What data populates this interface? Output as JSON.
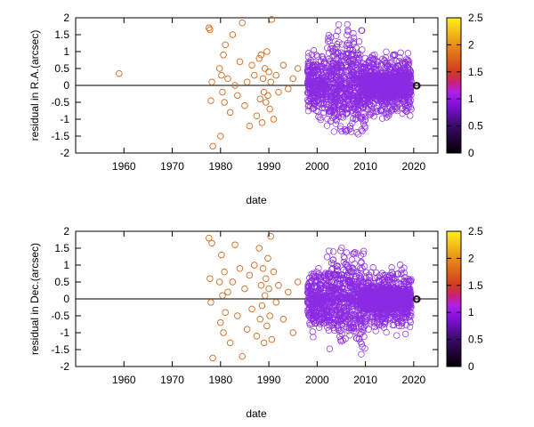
{
  "chart_data": [
    {
      "type": "scatter",
      "xlabel": "date",
      "ylabel": "residual in R.A.(arcsec)",
      "xlim": [
        1950,
        2025
      ],
      "ylim": [
        -2,
        2
      ],
      "x_ticks": [
        "1960",
        "1970",
        "1980",
        "1990",
        "2000",
        "2010",
        "2020"
      ],
      "x_tick_values": [
        1960,
        1970,
        1980,
        1990,
        2000,
        2010,
        2020
      ],
      "y_ticks": [
        "-2",
        "-1.5",
        "-1",
        "-0.5",
        "0",
        "0.5",
        "1",
        "1.5",
        "2"
      ],
      "y_tick_values": [
        -2,
        -1.5,
        -1,
        -0.5,
        0,
        0.5,
        1,
        1.5,
        2
      ],
      "zero_line": 0,
      "marker": "open-circle",
      "colorbar": {
        "range": [
          0,
          2.5
        ],
        "ticks": [
          "0",
          "0.5",
          "1",
          "1.5",
          "2",
          "2.5"
        ],
        "tick_values": [
          0,
          0.5,
          1,
          1.5,
          2,
          2.5
        ],
        "palette": "gnuplot"
      },
      "series": [
        {
          "color_value": 1.45,
          "color": "#d2691e",
          "x": [
            1959.0,
            1977.6,
            1977.8,
            1978.0,
            1978.2,
            1978.4,
            1979.8,
            1980.0,
            1980.2,
            1980.4,
            1980.6,
            1980.8,
            1981.0,
            1981.5,
            1982.0,
            1982.5,
            1983.0,
            1983.5,
            1984.0,
            1984.5,
            1985.0,
            1985.5,
            1986.0,
            1986.5,
            1987.0,
            1987.5,
            1988.0,
            1988.2,
            1988.4,
            1988.6,
            1988.8,
            1989.0,
            1989.2,
            1989.4,
            1989.6,
            1989.8,
            1990.0,
            1990.2,
            1990.4,
            1990.6,
            1991.0,
            1991.5,
            1992.0,
            1993.0,
            1994.0,
            1995.0,
            1996.0
          ],
          "y": [
            0.35,
            1.7,
            1.65,
            -0.45,
            0.1,
            -1.8,
            0.5,
            -1.5,
            0.3,
            -0.2,
            0.9,
            -0.5,
            1.2,
            0.2,
            -0.8,
            1.5,
            0.0,
            -0.3,
            0.7,
            1.85,
            -0.6,
            0.1,
            -1.2,
            0.6,
            0.3,
            -0.9,
            0.8,
            -0.4,
            0.9,
            -1.1,
            0.2,
            -0.2,
            0.5,
            -0.5,
            1.0,
            -0.3,
            0.4,
            -0.7,
            0.1,
            1.95,
            -1.0,
            0.3,
            -0.2,
            0.6,
            -0.1,
            0.2,
            0.5
          ]
        },
        {
          "color_value": 1.1,
          "color": "#8b2be2",
          "x_range": [
            1998,
            2019.5
          ],
          "y_spread": [
            -2,
            2
          ],
          "points_shown": "dense"
        },
        {
          "color_value": 0.1,
          "color": "#301030",
          "x": [
            2020.5
          ],
          "y": [
            0.0
          ]
        }
      ]
    },
    {
      "type": "scatter",
      "xlabel": "date",
      "ylabel": "residual in Dec.(arcsec)",
      "xlim": [
        1950,
        2025
      ],
      "ylim": [
        -2,
        2
      ],
      "x_ticks": [
        "1960",
        "1970",
        "1980",
        "1990",
        "2000",
        "2010",
        "2020"
      ],
      "x_tick_values": [
        1960,
        1970,
        1980,
        1990,
        2000,
        2010,
        2020
      ],
      "y_ticks": [
        "-2",
        "-1.5",
        "-1",
        "-0.5",
        "0",
        "0.5",
        "1",
        "1.5",
        "2"
      ],
      "y_tick_values": [
        -2,
        -1.5,
        -1,
        -0.5,
        0,
        0.5,
        1,
        1.5,
        2
      ],
      "zero_line": 0,
      "marker": "open-circle",
      "colorbar": {
        "range": [
          0,
          2.5
        ],
        "ticks": [
          "0",
          "0.5",
          "1",
          "1.5",
          "2",
          "2.5"
        ],
        "tick_values": [
          0,
          0.5,
          1,
          1.5,
          2,
          2.5
        ],
        "palette": "gnuplot"
      },
      "series": [
        {
          "color_value": 1.45,
          "color": "#d2691e",
          "x": [
            1977.6,
            1977.8,
            1978.0,
            1978.2,
            1978.4,
            1979.8,
            1980.0,
            1980.2,
            1980.4,
            1980.6,
            1980.8,
            1981.0,
            1981.5,
            1982.0,
            1982.5,
            1983.0,
            1983.5,
            1984.0,
            1984.5,
            1985.0,
            1985.5,
            1986.0,
            1986.5,
            1987.0,
            1987.5,
            1988.0,
            1988.2,
            1988.4,
            1988.6,
            1988.8,
            1989.0,
            1989.2,
            1989.4,
            1989.6,
            1989.8,
            1990.0,
            1990.2,
            1990.4,
            1990.6,
            1991.0,
            1991.5,
            1992.0,
            1993.0,
            1994.0,
            1995.0,
            1996.0
          ],
          "y": [
            1.8,
            0.6,
            -0.1,
            1.65,
            -1.75,
            0.5,
            -0.7,
            1.3,
            0.1,
            -1.0,
            0.8,
            -0.4,
            0.2,
            -1.3,
            0.5,
            1.6,
            -0.5,
            0.9,
            -1.7,
            0.3,
            -0.9,
            0.7,
            -0.3,
            1.0,
            -1.1,
            1.5,
            -0.6,
            0.4,
            -0.2,
            0.9,
            -1.3,
            0.1,
            0.6,
            -0.8,
            1.2,
            0.3,
            -0.5,
            1.85,
            -1.2,
            0.8,
            -0.1,
            0.4,
            -0.6,
            0.2,
            -1.0,
            0.5
          ]
        },
        {
          "color_value": 1.1,
          "color": "#8b2be2",
          "x_range": [
            1998,
            2019.5
          ],
          "y_spread": [
            -2,
            2
          ],
          "points_shown": "dense"
        },
        {
          "color_value": 0.1,
          "color": "#301030",
          "x": [
            2020.5
          ],
          "y": [
            0.0
          ]
        }
      ]
    }
  ]
}
